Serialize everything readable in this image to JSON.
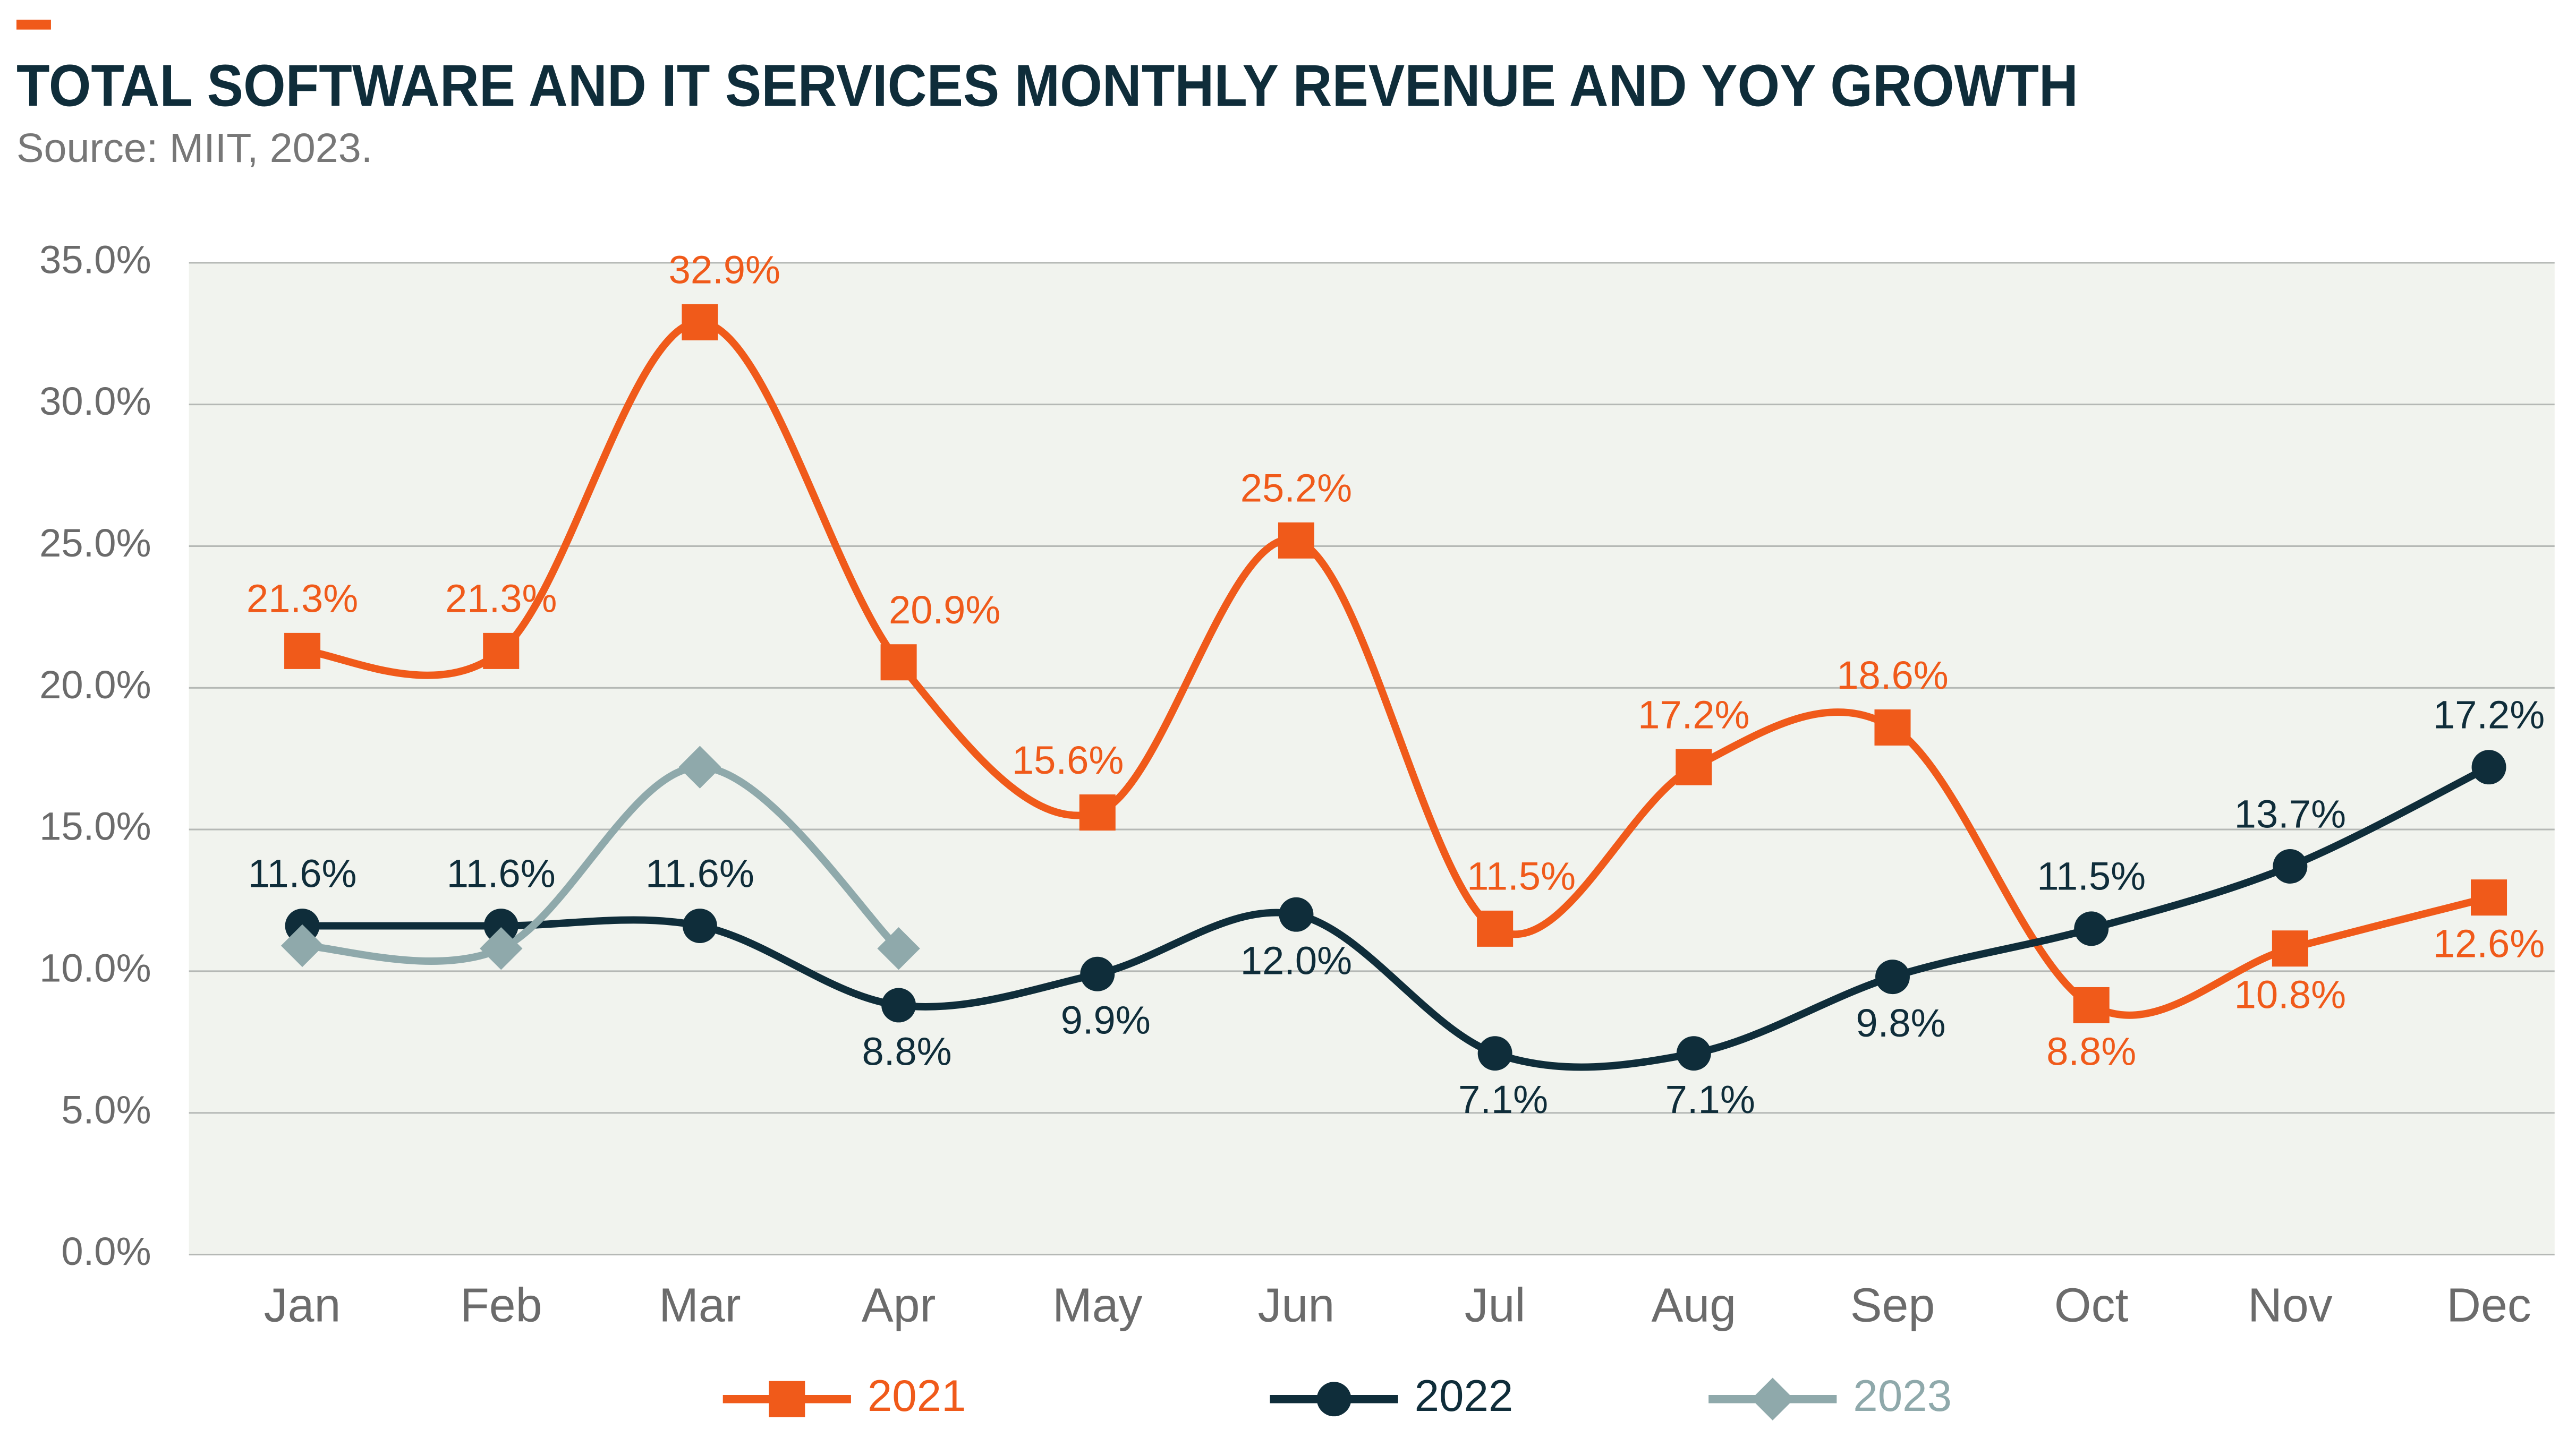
{
  "chart_data": {
    "type": "line",
    "title": "TOTAL SOFTWARE AND IT SERVICES MONTHLY REVENUE AND YOY GROWTH",
    "subtitle": "Source: MIIT, 2023.",
    "categories": [
      "Jan",
      "Feb",
      "Mar",
      "Apr",
      "May",
      "Jun",
      "Jul",
      "Aug",
      "Sep",
      "Oct",
      "Nov",
      "Dec"
    ],
    "series": [
      {
        "name": "2021",
        "color": "#f05a1a",
        "marker": "square",
        "values": [
          21.3,
          21.3,
          32.9,
          20.9,
          15.6,
          25.2,
          11.5,
          17.2,
          18.6,
          8.8,
          10.8,
          12.6
        ],
        "value_labels": [
          "21.3%",
          "21.3%",
          "32.9%",
          "20.9%",
          "15.6%",
          "25.2%",
          "11.5%",
          "17.2%",
          "18.6%",
          "8.8%",
          "10.8%",
          "12.6%"
        ]
      },
      {
        "name": "2022",
        "color": "#0f2d3a",
        "marker": "circle",
        "values": [
          11.6,
          11.6,
          11.6,
          8.8,
          9.9,
          12.0,
          7.1,
          7.1,
          9.8,
          11.5,
          13.7,
          17.2
        ],
        "value_labels": [
          "11.6%",
          "11.6%",
          "11.6%",
          "8.8%",
          "9.9%",
          "12.0%",
          "7.1%",
          "7.1%",
          "9.8%",
          "11.5%",
          "13.7%",
          "17.2%"
        ]
      },
      {
        "name": "2023",
        "color": "#8fa9ab",
        "marker": "diamond",
        "values": [
          10.9,
          10.8,
          17.2,
          10.8,
          null,
          null,
          null,
          null,
          null,
          null,
          null,
          null
        ]
      }
    ],
    "ylim": [
      0,
      35
    ],
    "yticks": [
      {
        "value": 0,
        "label": "0.0%"
      },
      {
        "value": 5,
        "label": "5.0%"
      },
      {
        "value": 10,
        "label": "10.0%"
      },
      {
        "value": 15,
        "label": "15.0%"
      },
      {
        "value": 20,
        "label": "20.0%"
      },
      {
        "value": 25,
        "label": "25.0%"
      },
      {
        "value": 30,
        "label": "30.0%"
      },
      {
        "value": 35,
        "label": "35.0%"
      }
    ],
    "grid": true
  }
}
